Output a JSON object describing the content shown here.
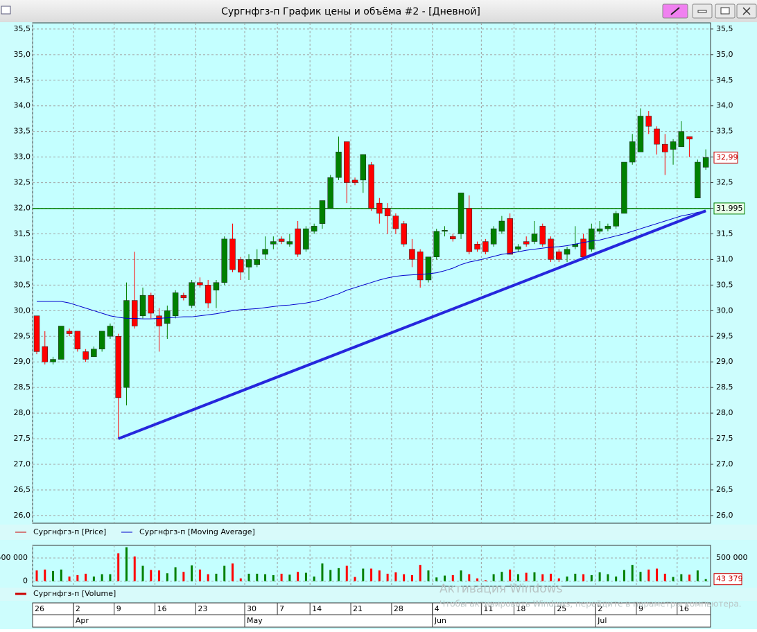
{
  "window": {
    "title": "Сургнфгз-п График цены и объёма #2 - [Дневной]"
  },
  "chart_data": [
    {
      "type": "candlestick",
      "categories": [
        "26",
        null,
        null,
        null,
        null,
        "2",
        null,
        null,
        null,
        null,
        "9",
        null,
        null,
        null,
        null,
        "16",
        null,
        null,
        null,
        null,
        "23",
        null,
        null,
        null,
        null,
        null,
        "30",
        null,
        null,
        null,
        "7",
        null,
        null,
        null,
        "14",
        null,
        null,
        null,
        null,
        "21",
        null,
        null,
        null,
        null,
        "28",
        null,
        null,
        null,
        null,
        "4",
        null,
        null,
        null,
        null,
        null,
        "11",
        null,
        null,
        null,
        "18",
        null,
        null,
        null,
        null,
        "25",
        null,
        null,
        null,
        null,
        "2",
        null,
        null,
        null,
        null,
        "9",
        null,
        null,
        null,
        null,
        "16",
        null,
        null,
        null
      ],
      "months": [
        null,
        null,
        null,
        null,
        null,
        "Apr",
        null,
        null,
        null,
        null,
        null,
        null,
        null,
        null,
        null,
        null,
        null,
        null,
        null,
        null,
        null,
        null,
        null,
        null,
        null,
        null,
        "May",
        null,
        null,
        null,
        null,
        null,
        null,
        null,
        null,
        null,
        null,
        null,
        null,
        null,
        null,
        null,
        null,
        null,
        null,
        null,
        null,
        null,
        null,
        "Jun",
        null,
        null,
        null,
        null,
        null,
        null,
        null,
        null,
        null,
        null,
        null,
        null,
        null,
        null,
        null,
        null,
        null,
        null,
        null,
        "Jul",
        null,
        null,
        null,
        null,
        null,
        null,
        null,
        null,
        null,
        null,
        null,
        null,
        null
      ],
      "series": [
        {
          "name": "Сургнфгз-п [Price]",
          "color": "#cc0000",
          "up_color": "#008000",
          "down_color": "#ff0000",
          "open": [
            29.9,
            29.3,
            29.0,
            29.05,
            29.6,
            29.6,
            29.2,
            29.1,
            29.25,
            29.5,
            29.5,
            28.5,
            30.2,
            29.9,
            30.3,
            29.9,
            29.75,
            29.9,
            30.3,
            30.1,
            30.55,
            30.5,
            30.4,
            30.55,
            31.4,
            31.0,
            30.85,
            30.9,
            31.1,
            31.3,
            31.4,
            31.3,
            31.6,
            31.2,
            31.55,
            31.7,
            32.0,
            32.6,
            33.3,
            32.55,
            32.55,
            32.85,
            32.1,
            32.0,
            31.85,
            31.7,
            31.2,
            31.15,
            30.6,
            31.05,
            31.55,
            31.45,
            31.5,
            32.0,
            31.3,
            31.35,
            31.3,
            31.55,
            31.8,
            31.2,
            31.35,
            31.35,
            31.65,
            31.4,
            31.15,
            31.1,
            31.25,
            31.4,
            31.2,
            31.55,
            31.6,
            31.65,
            31.9,
            32.9,
            33.1,
            33.8,
            33.55,
            33.25,
            33.15,
            33.2,
            33.4,
            32.2,
            32.8
          ],
          "high": [
            29.9,
            29.6,
            29.1,
            29.7,
            29.65,
            29.6,
            29.25,
            29.3,
            29.6,
            29.75,
            29.55,
            30.55,
            31.15,
            30.45,
            30.35,
            30.05,
            30.1,
            30.4,
            30.35,
            30.6,
            30.65,
            30.6,
            30.6,
            31.45,
            31.7,
            31.05,
            31.1,
            31.2,
            31.45,
            31.45,
            31.45,
            31.5,
            31.75,
            31.65,
            31.7,
            32.15,
            32.65,
            33.4,
            33.3,
            32.6,
            33.05,
            32.9,
            32.2,
            32.1,
            31.9,
            31.75,
            31.4,
            31.2,
            31.05,
            31.6,
            31.65,
            31.5,
            32.3,
            32.25,
            31.35,
            31.4,
            31.65,
            31.85,
            31.9,
            31.3,
            31.45,
            31.75,
            31.7,
            31.45,
            31.2,
            31.25,
            31.65,
            31.5,
            31.7,
            31.75,
            31.7,
            31.95,
            32.9,
            33.45,
            33.95,
            33.9,
            33.6,
            33.45,
            33.35,
            33.7,
            33.4,
            32.95,
            33.15
          ],
          "low": [
            29.15,
            28.95,
            28.95,
            29.05,
            29.5,
            29.2,
            29.0,
            29.1,
            29.2,
            29.45,
            27.5,
            28.15,
            29.65,
            29.85,
            29.85,
            29.2,
            29.45,
            29.85,
            30.2,
            30.05,
            30.45,
            30.05,
            30.05,
            30.5,
            30.75,
            30.6,
            30.6,
            30.85,
            31.0,
            31.2,
            31.3,
            31.25,
            31.05,
            31.15,
            31.5,
            31.6,
            32.0,
            32.55,
            32.1,
            32.45,
            32.3,
            31.95,
            31.7,
            31.5,
            31.5,
            31.25,
            30.85,
            30.45,
            30.55,
            31.0,
            31.45,
            31.35,
            31.4,
            31.1,
            31.15,
            31.1,
            31.25,
            31.5,
            31.1,
            31.15,
            31.25,
            31.3,
            31.25,
            30.95,
            30.95,
            30.95,
            31.2,
            31.0,
            31.15,
            31.5,
            31.55,
            31.6,
            31.9,
            32.85,
            33.1,
            33.45,
            33.05,
            32.65,
            32.85,
            33.2,
            33.0,
            32.2,
            32.75
          ],
          "close": [
            29.2,
            29.0,
            29.05,
            29.7,
            29.55,
            29.25,
            29.05,
            29.25,
            29.6,
            29.7,
            28.3,
            30.2,
            29.7,
            30.3,
            29.95,
            29.7,
            30.0,
            30.35,
            30.25,
            30.55,
            30.5,
            30.15,
            30.55,
            31.4,
            30.8,
            30.75,
            31.0,
            31.0,
            31.2,
            31.35,
            31.35,
            31.35,
            31.1,
            31.6,
            31.65,
            32.15,
            32.6,
            33.1,
            32.5,
            32.5,
            33.05,
            32.0,
            31.9,
            31.85,
            31.6,
            31.3,
            31.0,
            30.6,
            31.05,
            31.55,
            31.57,
            31.4,
            32.3,
            31.15,
            31.2,
            31.15,
            31.6,
            31.75,
            31.1,
            31.25,
            31.3,
            31.5,
            31.3,
            31.0,
            31.0,
            31.2,
            31.3,
            31.05,
            31.6,
            31.6,
            31.65,
            31.9,
            32.9,
            33.3,
            33.8,
            33.6,
            33.25,
            33.1,
            33.3,
            33.5,
            33.35,
            32.9,
            32.99
          ]
        },
        {
          "name": "Сургнфгз-п [Moving Average]",
          "type": "line",
          "color": "#0000cc",
          "values": [
            30.18,
            30.18,
            30.18,
            30.18,
            30.15,
            30.1,
            30.05,
            30.0,
            29.95,
            29.9,
            29.87,
            29.85,
            29.85,
            29.84,
            29.84,
            29.85,
            29.86,
            29.87,
            29.88,
            29.88,
            29.9,
            29.92,
            29.94,
            29.97,
            30.0,
            30.02,
            30.03,
            30.04,
            30.06,
            30.08,
            30.1,
            30.11,
            30.13,
            30.15,
            30.18,
            30.22,
            30.28,
            30.33,
            30.4,
            30.45,
            30.5,
            30.55,
            30.6,
            30.64,
            30.67,
            30.69,
            30.7,
            30.71,
            30.72,
            30.74,
            30.78,
            30.83,
            30.9,
            30.95,
            30.98,
            31.02,
            31.06,
            31.1,
            31.12,
            31.15,
            31.18,
            31.2,
            31.22,
            31.24,
            31.25,
            31.27,
            31.3,
            31.33,
            31.36,
            31.38,
            31.42,
            31.46,
            31.5,
            31.55,
            31.6,
            31.65,
            31.7,
            31.75,
            31.8,
            31.85,
            31.88,
            31.92,
            31.95
          ]
        }
      ],
      "ylim": [
        25.85,
        35.62
      ],
      "yticks": [
        {
          "value": 26,
          "label": "26,0"
        },
        {
          "value": 26.5,
          "label": "26,5"
        },
        {
          "value": 27,
          "label": "27,0"
        },
        {
          "value": 27.5,
          "label": "27,5"
        },
        {
          "value": 28,
          "label": "28,0"
        },
        {
          "value": 28.5,
          "label": "28,5"
        },
        {
          "value": 29,
          "label": "29,0"
        },
        {
          "value": 29.5,
          "label": "29,5"
        },
        {
          "value": 30,
          "label": "30,0"
        },
        {
          "value": 30.5,
          "label": "30,5"
        },
        {
          "value": 31,
          "label": "31,0"
        },
        {
          "value": 31.5,
          "label": "31,5"
        },
        {
          "value": 32,
          "label": "32,0"
        },
        {
          "value": 32.5,
          "label": "32,5"
        },
        {
          "value": 33,
          "label": "33,0"
        },
        {
          "value": 33.5,
          "label": "33,5"
        },
        {
          "value": 34,
          "label": "34,0"
        },
        {
          "value": 34.5,
          "label": "34,5"
        },
        {
          "value": 35,
          "label": "35,0"
        },
        {
          "value": 35.5,
          "label": "35,5"
        }
      ],
      "grid": true,
      "trendline": {
        "x": [
          10,
          82
        ],
        "y": [
          27.5,
          31.95
        ],
        "color": "#2626dd"
      },
      "level_line": {
        "value": 31.995,
        "label": "31.995",
        "color": "#008000"
      },
      "last_price_label": {
        "value": 32.99,
        "label": "32,99"
      }
    },
    {
      "type": "bar",
      "series": [
        {
          "name": "Сургнфгз-п [Volume]",
          "color": "#cc0000",
          "values": [
            230000,
            250000,
            220000,
            250000,
            100000,
            130000,
            160000,
            100000,
            150000,
            150000,
            600000,
            730000,
            530000,
            330000,
            240000,
            230000,
            170000,
            300000,
            200000,
            340000,
            250000,
            150000,
            160000,
            330000,
            380000,
            60000,
            160000,
            160000,
            150000,
            130000,
            160000,
            140000,
            200000,
            180000,
            100000,
            380000,
            240000,
            280000,
            330000,
            90000,
            270000,
            270000,
            230000,
            160000,
            190000,
            150000,
            130000,
            350000,
            230000,
            80000,
            120000,
            130000,
            230000,
            150000,
            60000,
            20000,
            150000,
            200000,
            250000,
            150000,
            180000,
            190000,
            150000,
            160000,
            60000,
            100000,
            160000,
            150000,
            130000,
            190000,
            150000,
            100000,
            240000,
            350000,
            200000,
            250000,
            270000,
            160000,
            90000,
            150000,
            140000,
            230000,
            43379
          ]
        }
      ],
      "ylim": [
        -110000,
        770000
      ],
      "yticks": [
        0,
        {
          "value": 500000,
          "label": "500 000"
        }
      ],
      "last_value_label": {
        "value": 43379,
        "label": "43 379"
      }
    }
  ],
  "watermark": {
    "title": "Активация Windows",
    "text": "Чтобы активировать Windows, перейдите в параметры компьютера."
  }
}
